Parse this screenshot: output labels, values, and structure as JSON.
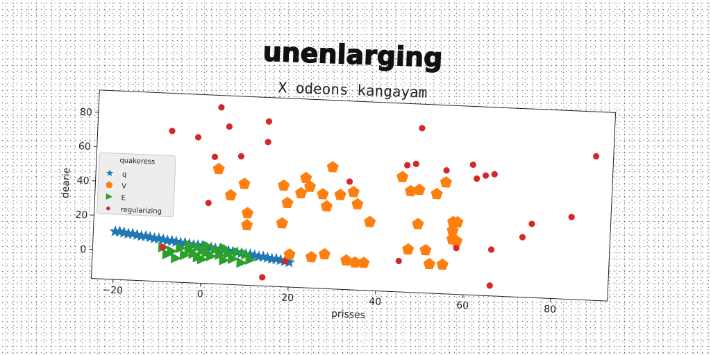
{
  "chart_data": {
    "type": "scatter",
    "title": "unenlarging",
    "subtitle": "X odeons kangayam",
    "xlabel": "prisses",
    "ylabel": "dearie",
    "xlim": [
      -25,
      93
    ],
    "ylim": [
      -17,
      93
    ],
    "xticks": [
      "−20",
      "0",
      "20",
      "40",
      "60",
      "80"
    ],
    "xtick_values": [
      -20,
      0,
      20,
      40,
      60,
      80
    ],
    "yticks": [
      "0",
      "20",
      "40",
      "60",
      "80"
    ],
    "ytick_values": [
      0,
      20,
      40,
      60,
      80
    ],
    "grid": false,
    "legend": {
      "title": "quakeress",
      "placement": "center-left"
    },
    "series": [
      {
        "name": "q",
        "marker": "star",
        "color": "#1f77b4",
        "points": [
          [
            -20,
            11
          ],
          [
            -19,
            11
          ],
          [
            -18,
            10.5
          ],
          [
            -17,
            10
          ],
          [
            -16,
            10
          ],
          [
            -15,
            9.5
          ],
          [
            -14,
            9
          ],
          [
            -13,
            9
          ],
          [
            -12,
            8.5
          ],
          [
            -11,
            8
          ],
          [
            -10,
            8
          ],
          [
            -9,
            7.5
          ],
          [
            -8,
            7
          ],
          [
            -7,
            7
          ],
          [
            -6,
            6.5
          ],
          [
            -5,
            6
          ],
          [
            -4,
            6
          ],
          [
            -3,
            5.5
          ],
          [
            -2,
            5
          ],
          [
            -1,
            5
          ],
          [
            0,
            4.5
          ],
          [
            1,
            4
          ],
          [
            2,
            4
          ],
          [
            3,
            3.5
          ],
          [
            4,
            3
          ],
          [
            5,
            3
          ],
          [
            6,
            2.5
          ],
          [
            7,
            2
          ],
          [
            8,
            2
          ],
          [
            9,
            1.5
          ],
          [
            10,
            1
          ],
          [
            11,
            1
          ],
          [
            12,
            0.5
          ],
          [
            13,
            0
          ],
          [
            14,
            0
          ],
          [
            15,
            -0.5
          ],
          [
            16,
            -1
          ],
          [
            17,
            -1
          ],
          [
            18,
            -1.5
          ],
          [
            19,
            -2
          ],
          [
            20,
            -2.5
          ]
        ]
      },
      {
        "name": "V",
        "marker": "pentagon",
        "color": "#ff7f0e",
        "points": [
          [
            3,
            50
          ],
          [
            6,
            35
          ],
          [
            9,
            42
          ],
          [
            10,
            25
          ],
          [
            10,
            18
          ],
          [
            18,
            20
          ],
          [
            18,
            42
          ],
          [
            19,
            32
          ],
          [
            20,
            2
          ],
          [
            22,
            38
          ],
          [
            23,
            47
          ],
          [
            24,
            42
          ],
          [
            25,
            1
          ],
          [
            27,
            38
          ],
          [
            28,
            3
          ],
          [
            28,
            31
          ],
          [
            29,
            54
          ],
          [
            31,
            38
          ],
          [
            33,
            0
          ],
          [
            34,
            40
          ],
          [
            35,
            -1
          ],
          [
            35,
            33
          ],
          [
            37,
            -1
          ],
          [
            38,
            23
          ],
          [
            45,
            50
          ],
          [
            47,
            8
          ],
          [
            47,
            42
          ],
          [
            49,
            23
          ],
          [
            49,
            43
          ],
          [
            51,
            8
          ],
          [
            52,
            0
          ],
          [
            53,
            41
          ],
          [
            55,
            0
          ],
          [
            55,
            48
          ],
          [
            57,
            20
          ],
          [
            57,
            15
          ],
          [
            57,
            25
          ],
          [
            58,
            25
          ],
          [
            58,
            14
          ]
        ]
      },
      {
        "name": "E",
        "marker": "triangle",
        "color": "#2ca02c",
        "points": [
          [
            -9,
            3
          ],
          [
            -8,
            -1
          ],
          [
            -7,
            1
          ],
          [
            -6,
            -3
          ],
          [
            -5,
            3
          ],
          [
            -4,
            -1
          ],
          [
            -3,
            2
          ],
          [
            -3,
            5
          ],
          [
            -2,
            0
          ],
          [
            -1,
            -2
          ],
          [
            -1,
            4
          ],
          [
            0,
            2
          ],
          [
            0,
            -3
          ],
          [
            1,
            1
          ],
          [
            1,
            5
          ],
          [
            2,
            -1
          ],
          [
            3,
            3
          ],
          [
            4,
            0
          ],
          [
            5,
            -3
          ],
          [
            5,
            4
          ],
          [
            6,
            1
          ],
          [
            7,
            -2
          ],
          [
            8,
            2
          ],
          [
            9,
            -4
          ],
          [
            10,
            1
          ],
          [
            11,
            -2
          ]
        ]
      },
      {
        "name": "regularizing",
        "marker": "circle",
        "color": "#d62728",
        "points": [
          [
            -8,
            71
          ],
          [
            -2,
            68
          ],
          [
            1,
            30
          ],
          [
            2,
            57
          ],
          [
            3,
            86
          ],
          [
            5,
            75
          ],
          [
            8,
            58
          ],
          [
            14,
            79
          ],
          [
            14,
            67
          ],
          [
            14,
            -12
          ],
          [
            19,
            -2
          ],
          [
            -9,
            3
          ],
          [
            33,
            46
          ],
          [
            45,
            1
          ],
          [
            46,
            57
          ],
          [
            48,
            58
          ],
          [
            49,
            79
          ],
          [
            55,
            55
          ],
          [
            58,
            10
          ],
          [
            61,
            59
          ],
          [
            62,
            51
          ],
          [
            64,
            53
          ],
          [
            66,
            54
          ],
          [
            66,
            10
          ],
          [
            66,
            -11
          ],
          [
            73,
            18
          ],
          [
            75,
            26
          ],
          [
            84,
            31
          ],
          [
            89,
            67
          ]
        ]
      }
    ]
  }
}
